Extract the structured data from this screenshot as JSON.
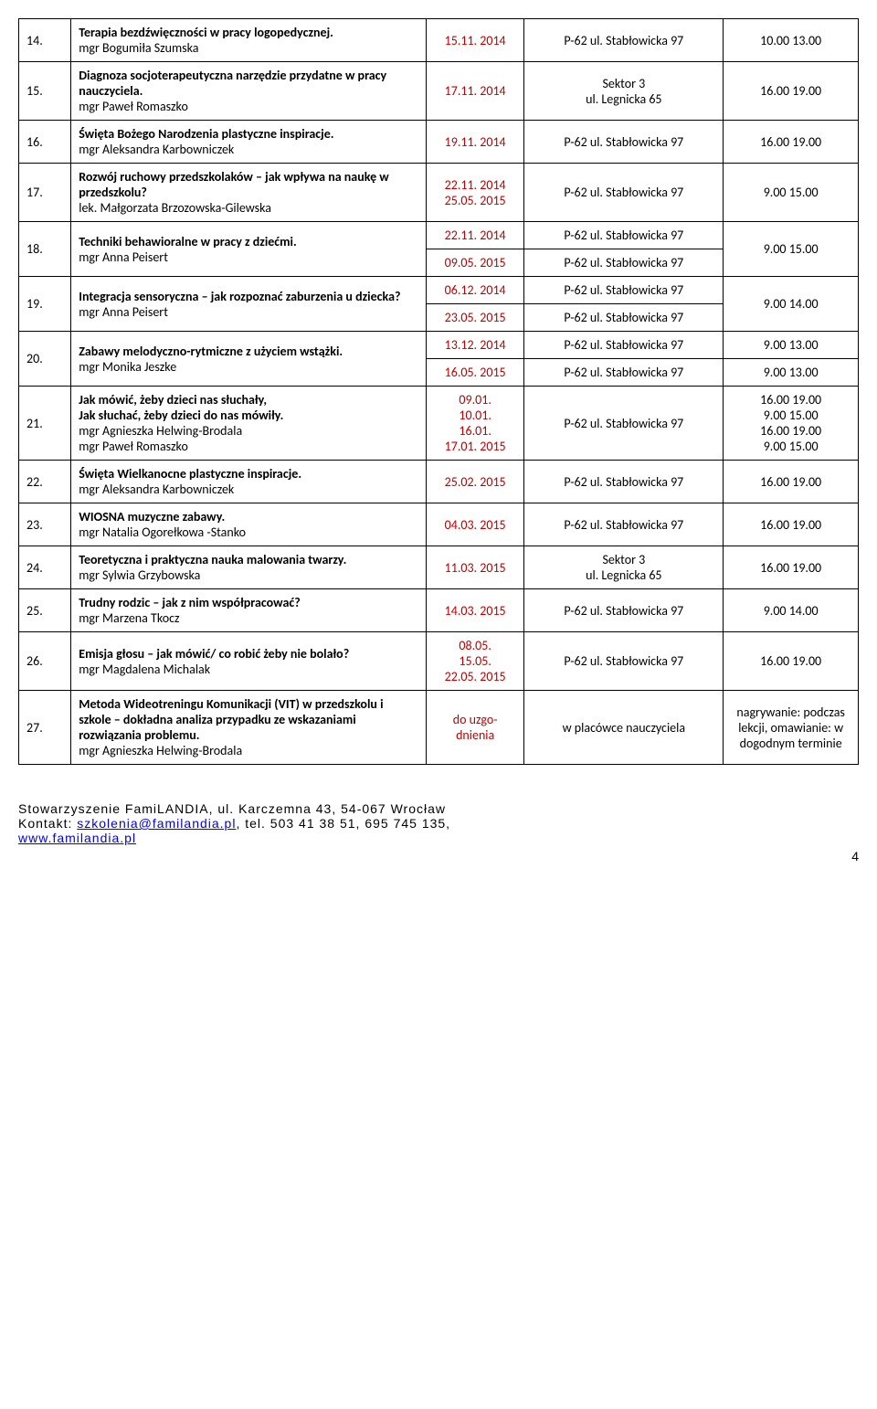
{
  "rows": [
    {
      "num": "14.",
      "title_bold": "Terapia bezdźwięczności w pracy logopedycznej.",
      "author": "mgr Bogumiła Szumska",
      "dates": [
        "15.11. 2014"
      ],
      "locs": [
        "P-62 ul. Stabłowicka 97"
      ],
      "times": [
        "10.00 13.00"
      ]
    },
    {
      "num": "15.",
      "title_bold": "Diagnoza socjoterapeutyczna narzędzie przydatne w pracy nauczyciela.",
      "author": "mgr Paweł Romaszko",
      "dates": [
        "17.11. 2014"
      ],
      "locs": [
        "Sektor 3\nul. Legnicka 65"
      ],
      "times": [
        "16.00 19.00"
      ]
    },
    {
      "num": "16.",
      "title_bold": "Święta Bożego Narodzenia plastyczne inspiracje.",
      "author": "mgr Aleksandra Karbowniczek",
      "dates": [
        "19.11. 2014"
      ],
      "locs": [
        "P-62 ul. Stabłowicka 97"
      ],
      "times": [
        "16.00 19.00"
      ]
    },
    {
      "num": "17.",
      "title_bold": "Rozwój ruchowy przedszkolaków – jak wpływa na naukę w przedszkolu?",
      "author": "lek. Małgorzata Brzozowska-Gilewska",
      "dates": [
        "22.11. 2014\n25.05. 2015"
      ],
      "locs": [
        "P-62 ul. Stabłowicka 97"
      ],
      "times": [
        "9.00 15.00"
      ]
    },
    {
      "num": "18.",
      "title_bold": "Techniki behawioralne w pracy z dziećmi.",
      "author": "mgr Anna Peisert",
      "dates": [
        "22.11. 2014",
        "09.05. 2015"
      ],
      "locs": [
        "P-62 ul. Stabłowicka 97",
        "P-62 ul. Stabłowicka 97"
      ],
      "times": [
        "9.00 15.00"
      ],
      "time_rowspan": 2
    },
    {
      "num": "19.",
      "title_bold": "Integracja sensoryczna – jak rozpoznać zaburzenia u dziecka?",
      "author": "mgr Anna Peisert",
      "dates": [
        "06.12. 2014",
        "23.05. 2015"
      ],
      "locs": [
        "P-62 ul. Stabłowicka 97",
        "P-62 ul. Stabłowicka 97"
      ],
      "times": [
        "9.00 14.00"
      ],
      "time_rowspan": 2
    },
    {
      "num": "20.",
      "title_bold": "Zabawy melodyczno-rytmiczne z użyciem wstążki.",
      "author": "mgr Monika Jeszke",
      "dates": [
        "13.12. 2014",
        "16.05. 2015"
      ],
      "locs": [
        "P-62 ul. Stabłowicka 97",
        "P-62 ul. Stabłowicka 97"
      ],
      "times": [
        "9.00 13.00",
        "9.00 13.00"
      ]
    },
    {
      "num": "21.",
      "title_bold": "Jak mówić, żeby dzieci nas słuchały,\nJak słuchać, żeby dzieci do nas mówiły.",
      "author": "mgr Agnieszka Helwing-Brodala\nmgr Paweł Romaszko",
      "dates": [
        "09.01.\n10.01.\n16.01.\n17.01. 2015"
      ],
      "locs": [
        "P-62 ul. Stabłowicka 97"
      ],
      "times": [
        "16.00 19.00\n9.00 15.00\n16.00 19.00\n9.00 15.00"
      ]
    },
    {
      "num": "22.",
      "title_bold": "Święta Wielkanocne plastyczne inspiracje.",
      "author": "mgr Aleksandra Karbowniczek",
      "dates": [
        "25.02. 2015"
      ],
      "locs": [
        "P-62 ul. Stabłowicka 97"
      ],
      "times": [
        "16.00 19.00"
      ]
    },
    {
      "num": "23.",
      "title_bold": "WIOSNA muzyczne zabawy.",
      "author": "mgr Natalia Ogorełkowa -Stanko",
      "dates": [
        "04.03. 2015"
      ],
      "locs": [
        "P-62 ul. Stabłowicka 97"
      ],
      "times": [
        "16.00 19.00"
      ]
    },
    {
      "num": "24.",
      "title_bold": "Teoretyczna i praktyczna nauka malowania twarzy.",
      "author": "mgr Sylwia Grzybowska",
      "dates": [
        "11.03. 2015"
      ],
      "locs": [
        "Sektor 3\nul. Legnicka 65"
      ],
      "times": [
        "16.00 19.00"
      ]
    },
    {
      "num": "25.",
      "title_bold": "Trudny rodzic – jak z nim współpracować?",
      "author": "mgr Marzena Tkocz",
      "dates": [
        "14.03. 2015"
      ],
      "locs": [
        "P-62 ul. Stabłowicka 97"
      ],
      "times": [
        "9.00 14.00"
      ]
    },
    {
      "num": "26.",
      "title_bold": "Emisja głosu – jak mówić/ co robić żeby nie bolało?",
      "author": "mgr Magdalena Michalak",
      "dates": [
        "08.05.\n15.05.\n22.05. 2015"
      ],
      "locs": [
        "P-62 ul. Stabłowicka 97"
      ],
      "times": [
        "16.00 19.00"
      ]
    },
    {
      "num": "27.",
      "title_bold": "Metoda Wideotreningu Komunikacji (VIT) w przedszkolu i szkole – dokładna analiza przypadku ze wskazaniami rozwiązania problemu.",
      "author": "mgr Agnieszka Helwing-Brodala",
      "dates": [
        "do uzgo-dnienia"
      ],
      "locs": [
        "w placówce nauczyciela"
      ],
      "times": [
        "nagrywanie: podczas lekcji, omawianie: w dogodnym terminie"
      ]
    }
  ],
  "footer": {
    "line1": "Stowarzyszenie FamiLANDIA, ul. Karczemna 43, 54-067 Wrocław",
    "line2_prefix": "Kontakt: ",
    "email": "szkolenia@familandia.pl",
    "line2_suffix": ", tel. 503 41 38 51, 695 745 135,",
    "line3": "www.familandia.pl"
  },
  "page_number": "4"
}
